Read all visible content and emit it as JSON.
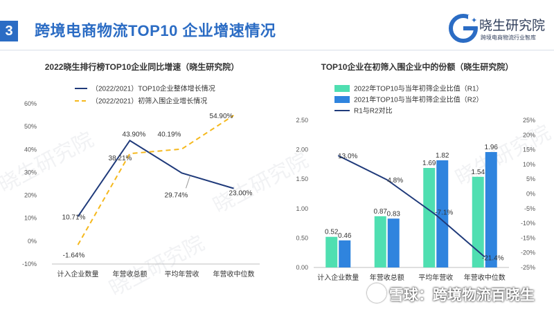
{
  "slide": {
    "number": "3",
    "title": "跨境电商物流TOP10 企业增速情况"
  },
  "logo": {
    "name": "晓生研究院",
    "sub": "跨境电商物流行业智库",
    "mark": "G"
  },
  "watermark": {
    "text": "雪球：跨境物流百晓生"
  },
  "background_watermark": {
    "text": "晓生研究院"
  },
  "colors": {
    "accent": "#2b6cc4",
    "navy": "#1f3a7a",
    "gold": "#f5b81c",
    "teal": "#4fdfb1",
    "blue": "#2f84de"
  },
  "chart_data": [
    {
      "type": "line",
      "title": "2022晓生排行榜TOP10企业同比增速（晓生研究院）",
      "categories": [
        "计入企业数量",
        "年营收总额",
        "平均年营收",
        "年营收中位数"
      ],
      "yticks": [
        "60%",
        "50%",
        "40%",
        "30%",
        "20%",
        "10%",
        "0%",
        "-10%"
      ],
      "ylim": [
        -10,
        60
      ],
      "series": [
        {
          "name": "（2022/2021）TOP10企业整体增长情况",
          "color": "#1f3a7a",
          "dash": false,
          "values": [
            10.71,
            43.9,
            29.74,
            23.0
          ],
          "labels": [
            "10.71%",
            "43.90%",
            "29.74%",
            "23.00%"
          ]
        },
        {
          "name": "（2022/2021）初筛入围企业增长情况",
          "color": "#f5b81c",
          "dash": true,
          "values": [
            -1.64,
            38.21,
            40.19,
            54.9
          ],
          "labels": [
            "-1.64%",
            "38.21%",
            "40.19%",
            "54.90%"
          ]
        }
      ]
    },
    {
      "type": "bar",
      "title": "TOP10企业在初筛入围企业中的份额（晓生研究院）",
      "categories": [
        "计入企业数量",
        "年营收总额",
        "平均年营收",
        "年营收中位数"
      ],
      "yticks_left": [
        "2.50",
        "2.00",
        "1.50",
        "1.00",
        "0.50",
        "0.00"
      ],
      "ylim_left": [
        0,
        2.5
      ],
      "yticks_right": [
        "25%",
        "20%",
        "15%",
        "10%",
        "5%",
        "0%",
        "-5%",
        "-10%",
        "-15%",
        "-20%",
        "-25%"
      ],
      "ylim_right": [
        -25,
        25
      ],
      "series": [
        {
          "name": "2022年TOP10与当年初筛企业比值（R1）",
          "color": "#4fdfb1",
          "values": [
            0.52,
            0.87,
            1.69,
            1.54
          ],
          "labels": [
            "0.52",
            "0.87",
            "1.69",
            "1.54"
          ]
        },
        {
          "name": "2021年TOP10与当年初筛企业比值（R2）",
          "color": "#2f84de",
          "values": [
            0.46,
            0.83,
            1.82,
            1.96
          ],
          "labels": [
            "0.46",
            "0.83",
            "1.82",
            "1.96"
          ]
        },
        {
          "name": "R1与R2对比",
          "color": "#1f3a7a",
          "axis": "right",
          "values": [
            13.0,
            4.8,
            -7.1,
            -21.4
          ],
          "labels": [
            "13.0%",
            "4.8%",
            "-7.1%",
            "-21.4%"
          ]
        }
      ]
    }
  ]
}
